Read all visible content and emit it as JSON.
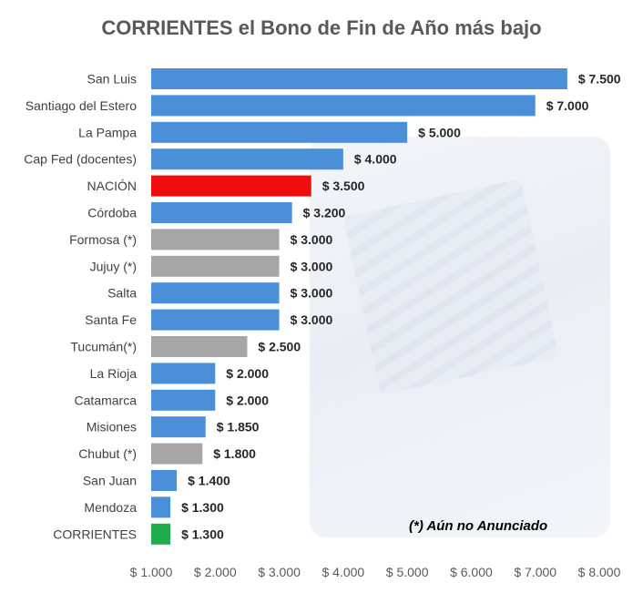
{
  "title": "CORRIENTES el Bono de Fin de Año más bajo",
  "note": "(*) Aún no Anunciado",
  "chart_data": {
    "type": "bar",
    "orientation": "horizontal",
    "title": "CORRIENTES el Bono de Fin de Año más bajo",
    "xlabel": "",
    "ylabel": "",
    "xlim": [
      1000,
      8000
    ],
    "ticks": [
      1000,
      2000,
      3000,
      4000,
      5000,
      6000,
      7000,
      8000
    ],
    "tick_labels": [
      "$ 1.000",
      "$ 2.000",
      "$ 3.000",
      "$ 4.000",
      "$ 5.000",
      "$ 6.000",
      "$ 7.000",
      "$ 8.000"
    ],
    "grid": false,
    "categories": [
      "San Luis",
      "Santiago del Estero",
      "La Pampa",
      "Cap Fed (docentes)",
      "NACIÓN",
      "Córdoba",
      "Formosa (*)",
      "Jujuy (*)",
      "Salta",
      "Santa Fe",
      "Tucumán(*)",
      "La Rioja",
      "Catamarca",
      "Misiones",
      "Chubut (*)",
      "San Juan",
      "Mendoza",
      "CORRIENTES"
    ],
    "values": [
      7500,
      7000,
      5000,
      4000,
      3500,
      3200,
      3000,
      3000,
      3000,
      3000,
      2500,
      2000,
      2000,
      1850,
      1800,
      1400,
      1300,
      1300
    ],
    "value_labels": [
      "$ 7.500",
      "$ 7.000",
      "$ 5.000",
      "$ 4.000",
      "$ 3.500",
      "$ 3.200",
      "$ 3.000",
      "$ 3.000",
      "$ 3.000",
      "$ 3.000",
      "$ 2.500",
      "$ 2.000",
      "$ 2.000",
      "$ 1.850",
      "$ 1.800",
      "$ 1.400",
      "$ 1.300",
      "$ 1.300"
    ],
    "colors": [
      "#4a8fd8",
      "#4a8fd8",
      "#4a8fd8",
      "#4a8fd8",
      "#f20d0d",
      "#4a8fd8",
      "#a6a6a6",
      "#a6a6a6",
      "#4a8fd8",
      "#4a8fd8",
      "#a6a6a6",
      "#4a8fd8",
      "#4a8fd8",
      "#4a8fd8",
      "#a6a6a6",
      "#4a8fd8",
      "#4a8fd8",
      "#1fad4f"
    ]
  }
}
